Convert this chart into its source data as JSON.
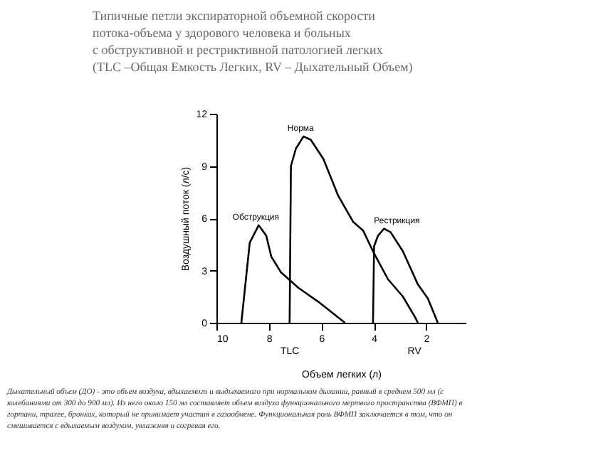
{
  "chart_data": {
    "type": "line",
    "title": "Типичные петли экспираторной объемной скорости\nпотока-объема у здорового человека и больных\nс обструктивной и рестриктивной патологией легких\n(TLC –Общая Емкость Легких, RV – Дыхательный Объем)",
    "xlabel": "Объем легких (л)",
    "ylabel": "Воздушный поток (л/с)",
    "xlim": [
      10,
      0.5
    ],
    "xticks": [
      10,
      8,
      6,
      4,
      2
    ],
    "ylim": [
      0,
      12
    ],
    "yticks": [
      0,
      3,
      6,
      9,
      12
    ],
    "grid": false,
    "legend": false,
    "marker": "none",
    "line_style": "solid",
    "series": [
      {
        "name": "Обструкция",
        "color": "#000000",
        "x": [
          9.05,
          8.73,
          8.39,
          8.1,
          7.91,
          7.54,
          6.87,
          6.11,
          5.1
        ],
        "values": [
          0,
          4.6,
          5.6,
          5.0,
          3.8,
          2.9,
          2.0,
          1.2,
          0
        ]
      },
      {
        "name": "Норма",
        "color": "#000000",
        "x": [
          7.21,
          7.16,
          6.97,
          6.68,
          6.4,
          5.92,
          5.36,
          4.79,
          4.41,
          4.03,
          3.46,
          2.89,
          2.42,
          2.32
        ],
        "values": [
          0,
          9.0,
          10.0,
          10.7,
          10.5,
          9.4,
          7.3,
          5.8,
          5.3,
          4.1,
          2.5,
          1.5,
          0.3,
          0
        ]
      },
      {
        "name": "Рестрикция",
        "color": "#000000",
        "x": [
          4.03,
          3.99,
          3.84,
          3.61,
          3.36,
          2.89,
          2.32,
          1.94,
          1.56
        ],
        "values": [
          0,
          4.4,
          5.0,
          5.4,
          5.2,
          4.1,
          2.2,
          1.4,
          0
        ]
      }
    ],
    "annotations": [
      {
        "text": "TLC",
        "x": 7.2,
        "y": 0
      },
      {
        "text": "RV",
        "x": 2.45,
        "y": 0
      },
      "Дыхательный объем (ДО) - это объем воздуха, вдыхаемого и выдыхаемого при нормальном дыхании, равный в среднем 500 мл (с колебаниями от 300 до 900 мл). Из него около 150 мл составляет объем воздуха функционального мертвого пространства (ВФМП) в гортани, трахее, бронхах, который не принимает участия в газообмене. Функциональная роль ВФМП заключается в том, что он смешивается с вдыхаемым воздухом, увлажняя и согревая его."
    ]
  }
}
